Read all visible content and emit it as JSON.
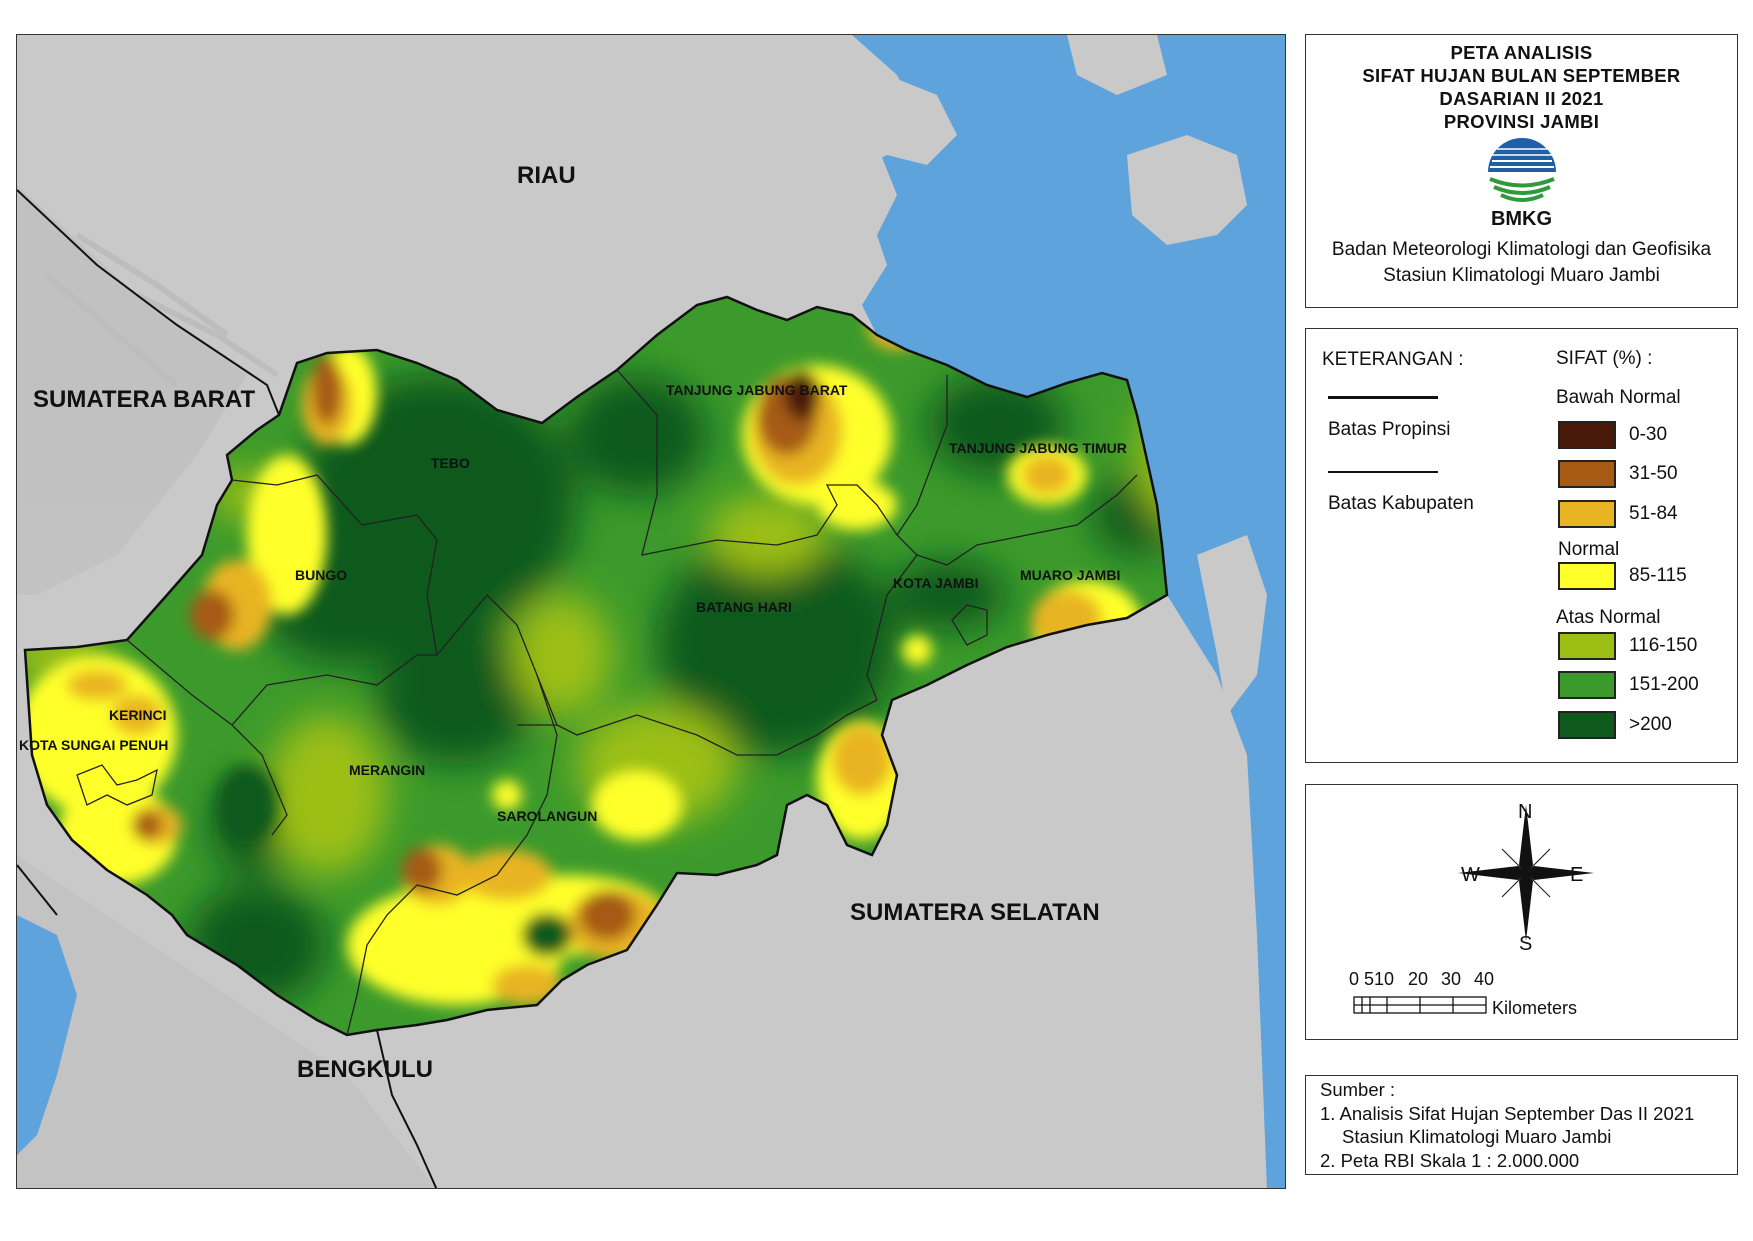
{
  "map": {
    "regions_neighbor": [
      "RIAU",
      "SUMATERA BARAT",
      "SUMATERA SELATAN",
      "BENGKULU"
    ],
    "districts": [
      "TANJUNG JABUNG BARAT",
      "TEBO",
      "TANJUNG JABUNG TIMUR",
      "BUNGO",
      "KOTA JAMBI",
      "MUARO JAMBI",
      "BATANG HARI",
      "KERINCI",
      "KOTA SUNGAI PENUH",
      "MERANGIN",
      "SAROLANGUN"
    ],
    "colors": {
      "sea": "#5fa3dd",
      "land": "#c9c9c9",
      "c0_30": "#4a1a08",
      "c31_50": "#a65a14",
      "c51_84": "#e8b424",
      "c85_115": "#ffff2a",
      "c116_150": "#9cbf14",
      "c151_200": "#3c9a2c",
      "c200": "#0e5a1c"
    }
  },
  "title": {
    "line1": "PETA ANALISIS",
    "line2": "SIFAT HUJAN BULAN SEPTEMBER",
    "line3": "DASARIAN II 2021",
    "line4": "PROVINSI JAMBI",
    "logo_text": "BMKG",
    "agency1": "Badan Meteorologi Klimatologi dan Geofisika",
    "agency2": "Stasiun Klimatologi Muaro Jambi"
  },
  "legend": {
    "heading": "KETERANGAN :",
    "prov_boundary": "Batas Propinsi",
    "kab_boundary": "Batas Kabupaten",
    "sifat_heading": "SIFAT (%) :",
    "group_below": "Bawah Normal",
    "group_normal": "Normal",
    "group_above": "Atas Normal",
    "classes": [
      {
        "label": "0-30",
        "color": "#4a1a08"
      },
      {
        "label": "31-50",
        "color": "#a65a14"
      },
      {
        "label": "51-84",
        "color": "#e8b424"
      },
      {
        "label": "85-115",
        "color": "#ffff2a"
      },
      {
        "label": "116-150",
        "color": "#9cbf14"
      },
      {
        "label": "151-200",
        "color": "#3c9a2c"
      },
      {
        "label": ">200",
        "color": "#0e5a1c"
      }
    ]
  },
  "compass": {
    "n": "N",
    "s": "S",
    "e": "E",
    "w": "W"
  },
  "scale": {
    "ticks": [
      "0",
      "5",
      "10",
      "20",
      "30",
      "40"
    ],
    "unit": "Kilometers"
  },
  "source": {
    "heading": "Sumber :",
    "item1a": "1. Analisis Sifat Hujan September Das II 2021",
    "item1b": "Stasiun Klimatologi Muaro Jambi",
    "item2": "2. Peta RBI Skala 1 : 2.000.000"
  }
}
